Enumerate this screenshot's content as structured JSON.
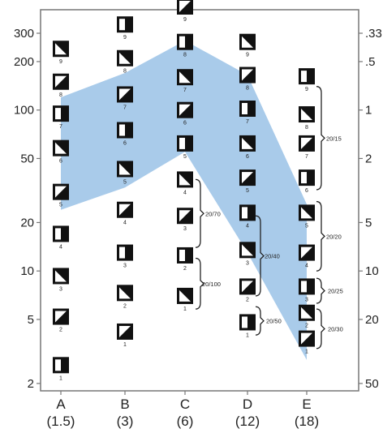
{
  "chart_data": {
    "type": "scatter",
    "y_scale": "log",
    "ylim": [
      1.8,
      420
    ],
    "left_ticks": [
      "300",
      "200",
      "100",
      "50",
      "20",
      "10",
      "5",
      "2"
    ],
    "right_ticks": [
      ".33",
      ".5",
      "1",
      "2",
      "5",
      "10",
      "20",
      "50"
    ],
    "categories": [
      {
        "name": "A",
        "sub": "(1.5)"
      },
      {
        "name": "B",
        "sub": "(3)"
      },
      {
        "name": "C",
        "sub": "(6)"
      },
      {
        "name": "D",
        "sub": "(12)"
      },
      {
        "name": "E",
        "sub": "(18)"
      }
    ],
    "columns": [
      {
        "category": "A",
        "values": [
          2.6,
          5.2,
          9.3,
          17,
          31,
          58,
          95,
          150,
          240
        ]
      },
      {
        "category": "B",
        "values": [
          4.2,
          7.3,
          13,
          24,
          43,
          75,
          125,
          210,
          340
        ]
      },
      {
        "category": "C",
        "values": [
          7,
          12.5,
          22,
          37,
          62,
          100,
          160,
          265,
          440
        ]
      },
      {
        "category": "D",
        "values": [
          4.8,
          8,
          13.5,
          23,
          38,
          62,
          102,
          165,
          265
        ]
      },
      {
        "category": "E",
        "values": [
          3.8,
          5.5,
          8,
          13,
          23,
          38,
          62,
          94,
          162
        ]
      }
    ],
    "series": [
      {
        "band_lower": [
          24,
          33,
          55,
          13,
          2.8
        ],
        "band_upper": [
          120,
          170,
          270,
          165,
          26
        ]
      }
    ],
    "annotations": [
      {
        "label": "20/70",
        "category": "C"
      },
      {
        "label": "20/100",
        "category": "C"
      },
      {
        "label": "20/40",
        "category": "D"
      },
      {
        "label": "20/50",
        "category": "D"
      },
      {
        "label": "20/15",
        "category": "E"
      },
      {
        "label": "20/20",
        "category": "E"
      },
      {
        "label": "20/25",
        "category": "E"
      },
      {
        "label": "20/30",
        "category": "E"
      }
    ],
    "colors": {
      "band": "#a9cbea",
      "frame": "#777777",
      "glyph": "#111111"
    }
  }
}
